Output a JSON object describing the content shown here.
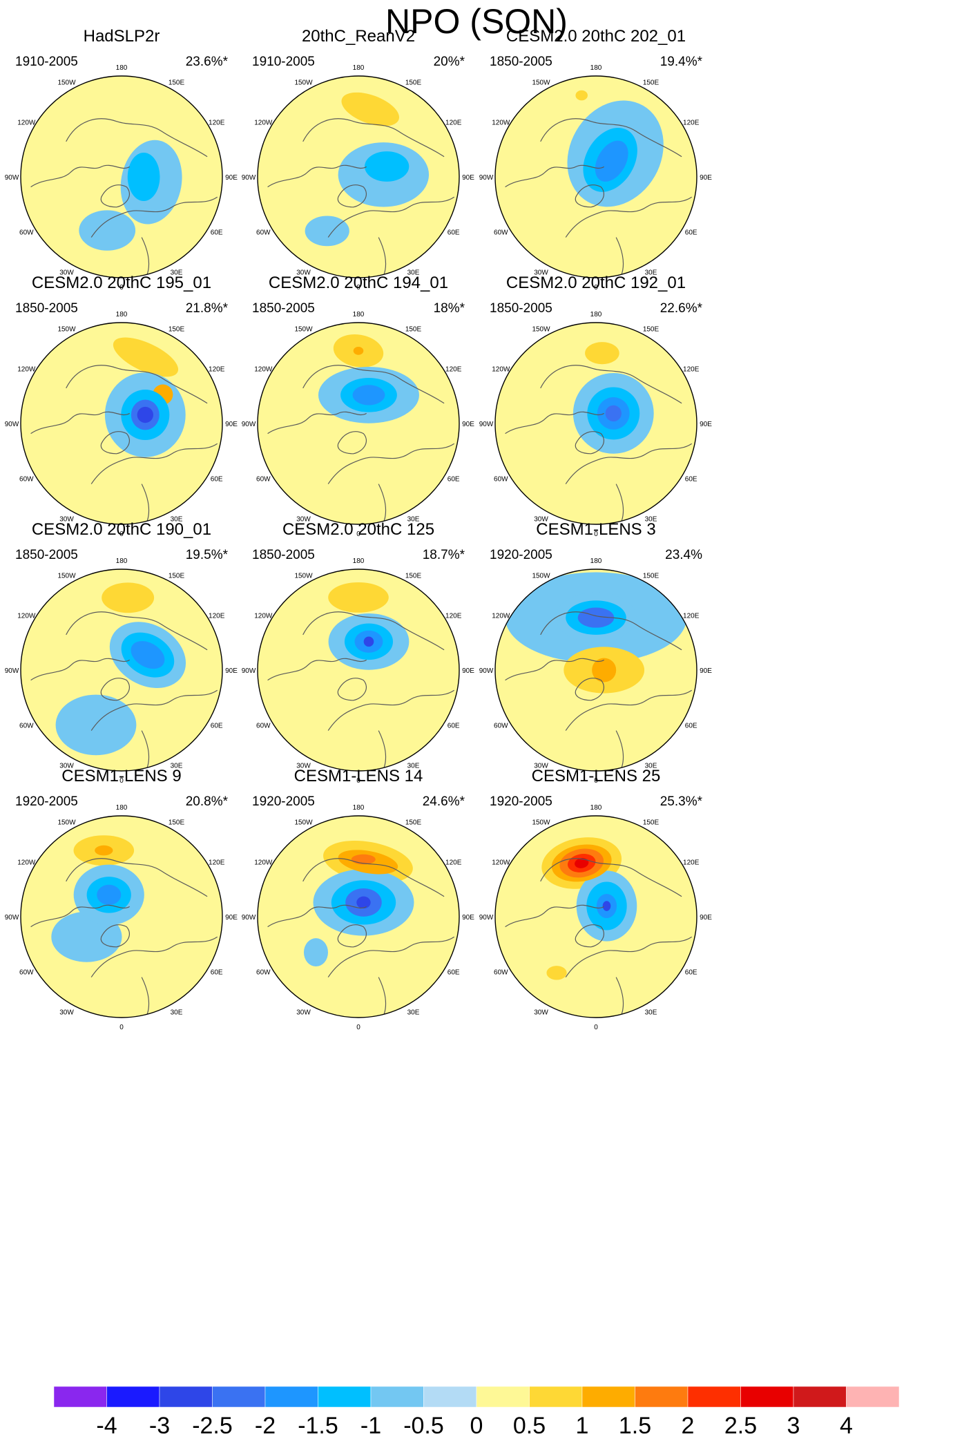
{
  "figure": {
    "title": "NPO (SON)"
  },
  "chart_data": {
    "type": "polar-stereographic-contour-maps",
    "title": "NPO (SON)",
    "projection": "north polar stereographic",
    "longitude_labels": [
      "180",
      "150E",
      "120E",
      "90E",
      "60E",
      "30E",
      "0",
      "30W",
      "60W",
      "90W",
      "120W",
      "150W"
    ],
    "panels": [
      {
        "title": "HadSLP2r",
        "period": "1910-2005",
        "variance": "23.6%*",
        "blobs": [
          {
            "r": 0.3,
            "bearing": 100,
            "rx": 0.3,
            "ry": 0.42,
            "rot": 10,
            "value": -0.8
          },
          {
            "r": 0.22,
            "bearing": 90,
            "rx": 0.16,
            "ry": 0.24,
            "rot": 0,
            "value": -1.2
          },
          {
            "r": 0.55,
            "bearing": 195,
            "rx": 0.28,
            "ry": 0.2,
            "rot": 0,
            "value": -0.6
          }
        ]
      },
      {
        "title": "20thC_ReanV2",
        "period": "1910-2005",
        "variance": "20%*",
        "blobs": [
          {
            "r": 0.68,
            "bearing": 10,
            "rx": 0.3,
            "ry": 0.14,
            "rot": 20,
            "value": 0.8
          },
          {
            "r": 0.25,
            "bearing": 85,
            "rx": 0.45,
            "ry": 0.32,
            "rot": 0,
            "value": -0.8
          },
          {
            "r": 0.3,
            "bearing": 70,
            "rx": 0.22,
            "ry": 0.15,
            "rot": 0,
            "value": -1.3
          },
          {
            "r": 0.62,
            "bearing": 210,
            "rx": 0.22,
            "ry": 0.15,
            "rot": 0,
            "value": -0.8
          }
        ]
      },
      {
        "title": "CESM2.0 20thC 202_01",
        "period": "1850-2005",
        "variance": "19.4%*",
        "blobs": [
          {
            "r": 0.82,
            "bearing": 350,
            "rx": 0.06,
            "ry": 0.05,
            "rot": 0,
            "value": 0.8
          },
          {
            "r": 0.3,
            "bearing": 40,
            "rx": 0.45,
            "ry": 0.55,
            "rot": 30,
            "value": -0.8
          },
          {
            "r": 0.22,
            "bearing": 40,
            "rx": 0.24,
            "ry": 0.34,
            "rot": 30,
            "value": -1.3
          },
          {
            "r": 0.22,
            "bearing": 45,
            "rx": 0.14,
            "ry": 0.22,
            "rot": 30,
            "value": -1.8
          }
        ]
      },
      {
        "title": "CESM2.0 20thC 195_01",
        "period": "1850-2005",
        "variance": "21.8%*",
        "blobs": [
          {
            "r": 0.7,
            "bearing": 20,
            "rx": 0.35,
            "ry": 0.14,
            "rot": 25,
            "value": 0.8
          },
          {
            "r": 0.5,
            "bearing": 55,
            "rx": 0.1,
            "ry": 0.1,
            "rot": 0,
            "value": 1.3
          },
          {
            "r": 0.25,
            "bearing": 70,
            "rx": 0.4,
            "ry": 0.42,
            "rot": 0,
            "value": -0.8
          },
          {
            "r": 0.25,
            "bearing": 70,
            "rx": 0.24,
            "ry": 0.25,
            "rot": 0,
            "value": -1.3
          },
          {
            "r": 0.25,
            "bearing": 70,
            "rx": 0.14,
            "ry": 0.15,
            "rot": 0,
            "value": -2.3
          },
          {
            "r": 0.25,
            "bearing": 70,
            "rx": 0.08,
            "ry": 0.08,
            "rot": 0,
            "value": -2.8
          }
        ]
      },
      {
        "title": "CESM2.0 20thC 194_01",
        "period": "1850-2005",
        "variance": "18%*",
        "blobs": [
          {
            "r": 0.72,
            "bearing": 0,
            "rx": 0.25,
            "ry": 0.16,
            "rot": 10,
            "value": 0.8
          },
          {
            "r": 0.72,
            "bearing": 0,
            "rx": 0.05,
            "ry": 0.04,
            "rot": 0,
            "value": 1.3
          },
          {
            "r": 0.3,
            "bearing": 20,
            "rx": 0.5,
            "ry": 0.28,
            "rot": 0,
            "value": -0.8
          },
          {
            "r": 0.3,
            "bearing": 20,
            "rx": 0.28,
            "ry": 0.17,
            "rot": 0,
            "value": -1.3
          },
          {
            "r": 0.3,
            "bearing": 20,
            "rx": 0.16,
            "ry": 0.1,
            "rot": 0,
            "value": -1.8
          }
        ]
      },
      {
        "title": "CESM2.0 20thC 192_01",
        "period": "1850-2005",
        "variance": "22.6%*",
        "blobs": [
          {
            "r": 0.7,
            "bearing": 5,
            "rx": 0.17,
            "ry": 0.11,
            "rot": 0,
            "value": 0.8
          },
          {
            "r": 0.45,
            "bearing": 75,
            "rx": 0.12,
            "ry": 0.16,
            "rot": 20,
            "value": 0.8
          },
          {
            "r": 0.2,
            "bearing": 60,
            "rx": 0.4,
            "ry": 0.4,
            "rot": 0,
            "value": -0.8
          },
          {
            "r": 0.2,
            "bearing": 60,
            "rx": 0.26,
            "ry": 0.26,
            "rot": 0,
            "value": -1.3
          },
          {
            "r": 0.2,
            "bearing": 60,
            "rx": 0.16,
            "ry": 0.16,
            "rot": 0,
            "value": -1.8
          },
          {
            "r": 0.2,
            "bearing": 60,
            "rx": 0.08,
            "ry": 0.08,
            "rot": 0,
            "value": -2.3
          }
        ]
      },
      {
        "title": "CESM2.0 20thC 190_01",
        "period": "1850-2005",
        "variance": "19.5%*",
        "blobs": [
          {
            "r": 0.72,
            "bearing": 5,
            "rx": 0.26,
            "ry": 0.15,
            "rot": 0,
            "value": 0.8
          },
          {
            "r": 0.3,
            "bearing": 60,
            "rx": 0.4,
            "ry": 0.3,
            "rot": 30,
            "value": -0.8
          },
          {
            "r": 0.3,
            "bearing": 60,
            "rx": 0.28,
            "ry": 0.2,
            "rot": 30,
            "value": -1.3
          },
          {
            "r": 0.3,
            "bearing": 60,
            "rx": 0.18,
            "ry": 0.12,
            "rot": 30,
            "value": -1.8
          },
          {
            "r": 0.6,
            "bearing": 205,
            "rx": 0.4,
            "ry": 0.3,
            "rot": 0,
            "value": -0.6
          }
        ]
      },
      {
        "title": "CESM2.0 20thC 125",
        "period": "1850-2005",
        "variance": "18.7%*",
        "blobs": [
          {
            "r": 0.72,
            "bearing": 0,
            "rx": 0.3,
            "ry": 0.15,
            "rot": 0,
            "value": 0.8
          },
          {
            "r": 0.3,
            "bearing": 20,
            "rx": 0.4,
            "ry": 0.28,
            "rot": 0,
            "value": -0.8
          },
          {
            "r": 0.3,
            "bearing": 20,
            "rx": 0.24,
            "ry": 0.18,
            "rot": 0,
            "value": -1.3
          },
          {
            "r": 0.3,
            "bearing": 20,
            "rx": 0.14,
            "ry": 0.11,
            "rot": 0,
            "value": -1.8
          },
          {
            "r": 0.3,
            "bearing": 20,
            "rx": 0.05,
            "ry": 0.05,
            "rot": 0,
            "value": -2.8
          }
        ]
      },
      {
        "title": "CESM1-LENS 3",
        "period": "1920-2005",
        "variance": "23.4%",
        "blobs": [
          {
            "r": 0.52,
            "bearing": 0,
            "rx": 0.9,
            "ry": 0.45,
            "rot": 0,
            "value": -0.6
          },
          {
            "r": 0.52,
            "bearing": 0,
            "rx": 0.4,
            "ry": 0.25,
            "rot": 0,
            "value": -0.8
          },
          {
            "r": 0.52,
            "bearing": 0,
            "rx": 0.3,
            "ry": 0.17,
            "rot": 0,
            "value": -1.3
          },
          {
            "r": 0.52,
            "bearing": 0,
            "rx": 0.18,
            "ry": 0.1,
            "rot": 0,
            "value": -2.3
          },
          {
            "r": 0.08,
            "bearing": 90,
            "rx": 0.4,
            "ry": 0.23,
            "rot": 0,
            "value": 0.8
          },
          {
            "r": 0.08,
            "bearing": 90,
            "rx": 0.12,
            "ry": 0.12,
            "rot": 0,
            "value": 1.3
          }
        ]
      },
      {
        "title": "CESM1-LENS 9",
        "period": "1920-2005",
        "variance": "20.8%*",
        "blobs": [
          {
            "r": 0.68,
            "bearing": 345,
            "rx": 0.3,
            "ry": 0.15,
            "rot": 0,
            "value": 0.8
          },
          {
            "r": 0.68,
            "bearing": 345,
            "rx": 0.09,
            "ry": 0.05,
            "rot": 0,
            "value": 1.3
          },
          {
            "r": 0.25,
            "bearing": 330,
            "rx": 0.35,
            "ry": 0.3,
            "rot": 0,
            "value": -0.8
          },
          {
            "r": 0.25,
            "bearing": 330,
            "rx": 0.22,
            "ry": 0.18,
            "rot": 0,
            "value": -1.3
          },
          {
            "r": 0.25,
            "bearing": 330,
            "rx": 0.12,
            "ry": 0.1,
            "rot": 0,
            "value": -1.8
          },
          {
            "r": 0.4,
            "bearing": 240,
            "rx": 0.35,
            "ry": 0.25,
            "rot": 0,
            "value": -0.6
          }
        ]
      },
      {
        "title": "CESM1-LENS 14",
        "period": "1920-2005",
        "variance": "24.6%*",
        "blobs": [
          {
            "r": 0.55,
            "bearing": 10,
            "rx": 0.45,
            "ry": 0.2,
            "rot": 10,
            "value": 0.8
          },
          {
            "r": 0.55,
            "bearing": 10,
            "rx": 0.3,
            "ry": 0.11,
            "rot": 10,
            "value": 1.3
          },
          {
            "r": 0.57,
            "bearing": 5,
            "rx": 0.12,
            "ry": 0.05,
            "rot": 0,
            "value": 1.8
          },
          {
            "r": 0.15,
            "bearing": 20,
            "rx": 0.5,
            "ry": 0.33,
            "rot": 0,
            "value": -0.8
          },
          {
            "r": 0.15,
            "bearing": 20,
            "rx": 0.32,
            "ry": 0.22,
            "rot": 0,
            "value": -1.3
          },
          {
            "r": 0.15,
            "bearing": 20,
            "rx": 0.18,
            "ry": 0.14,
            "rot": 0,
            "value": -2.3
          },
          {
            "r": 0.15,
            "bearing": 20,
            "rx": 0.07,
            "ry": 0.06,
            "rot": 0,
            "value": -2.8
          },
          {
            "r": 0.55,
            "bearing": 230,
            "rx": 0.12,
            "ry": 0.14,
            "rot": 0,
            "value": -0.8
          }
        ]
      },
      {
        "title": "CESM1-LENS 25",
        "period": "1920-2005",
        "variance": "25.3%*",
        "blobs": [
          {
            "r": 0.55,
            "bearing": 345,
            "rx": 0.4,
            "ry": 0.25,
            "rot": -10,
            "value": 0.8
          },
          {
            "r": 0.55,
            "bearing": 345,
            "rx": 0.3,
            "ry": 0.18,
            "rot": -10,
            "value": 1.3
          },
          {
            "r": 0.55,
            "bearing": 345,
            "rx": 0.22,
            "ry": 0.14,
            "rot": -10,
            "value": 1.8
          },
          {
            "r": 0.55,
            "bearing": 345,
            "rx": 0.14,
            "ry": 0.09,
            "rot": -10,
            "value": 2.3
          },
          {
            "r": 0.55,
            "bearing": 345,
            "rx": 0.07,
            "ry": 0.05,
            "rot": -10,
            "value": 2.8
          },
          {
            "r": 0.15,
            "bearing": 45,
            "rx": 0.3,
            "ry": 0.35,
            "rot": 0,
            "value": -0.8
          },
          {
            "r": 0.15,
            "bearing": 45,
            "rx": 0.2,
            "ry": 0.24,
            "rot": 0,
            "value": -1.3
          },
          {
            "r": 0.15,
            "bearing": 45,
            "rx": 0.1,
            "ry": 0.12,
            "rot": 0,
            "value": -1.8
          },
          {
            "r": 0.15,
            "bearing": 45,
            "rx": 0.04,
            "ry": 0.05,
            "rot": 0,
            "value": -2.8
          },
          {
            "r": 0.68,
            "bearing": 215,
            "rx": 0.1,
            "ry": 0.07,
            "rot": 0,
            "value": 0.8
          }
        ]
      }
    ],
    "colorbar": {
      "labels": [
        "-4",
        "-3",
        "-2.5",
        "-2",
        "-1.5",
        "-1",
        "-0.5",
        "0",
        "0.5",
        "1",
        "1.5",
        "2",
        "2.5",
        "3",
        "4"
      ],
      "levels": [
        -4,
        -3,
        -2.5,
        -2,
        -1.5,
        -1,
        -0.5,
        0,
        0.5,
        1,
        1.5,
        2,
        2.5,
        3,
        4
      ],
      "colors": [
        "#8a27ee",
        "#1a1aff",
        "#2e46e8",
        "#3a72f2",
        "#1e96ff",
        "#00bfff",
        "#73c7f2",
        "#b3dbf5",
        "#fef896",
        "#fed835",
        "#feac00",
        "#fe7b0f",
        "#fe2f00",
        "#e80000",
        "#d0191b",
        "#feb3b3"
      ]
    }
  }
}
